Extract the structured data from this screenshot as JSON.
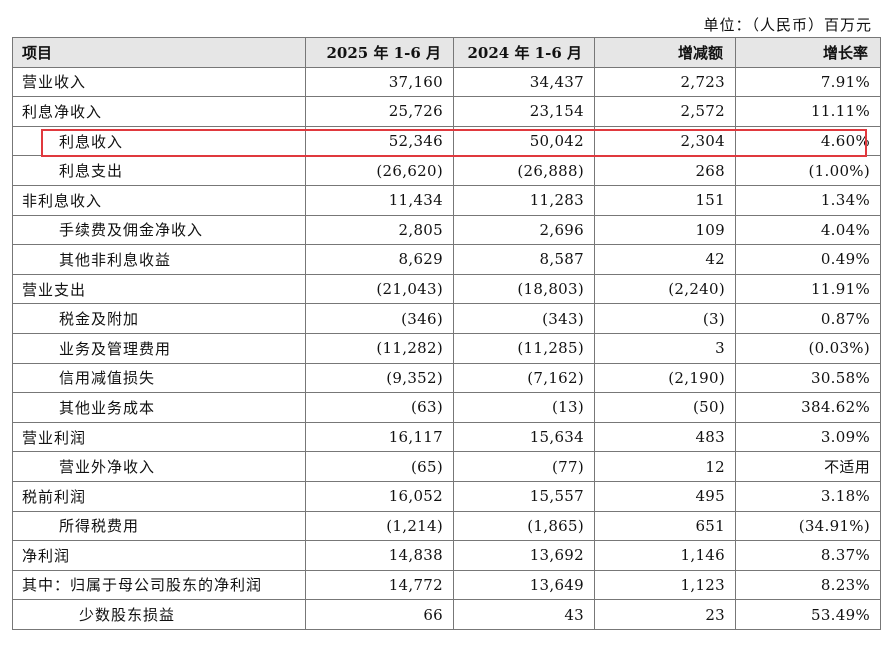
{
  "unit_label": "单位：（人民币）百万元",
  "headers": [
    "项目",
    "2025 年 1-6 月",
    "2024 年 1-6 月",
    "增减额",
    "增长率"
  ],
  "rows": [
    {
      "item": "营业收入",
      "level": 0,
      "y2025": "37,160",
      "y2024": "34,437",
      "change": "2,723",
      "rate": "7.91%"
    },
    {
      "item": "利息净收入",
      "level": 0,
      "y2025": "25,726",
      "y2024": "23,154",
      "change": "2,572",
      "rate": "11.11%"
    },
    {
      "item": "利息收入",
      "level": 1,
      "y2025": "52,346",
      "y2024": "50,042",
      "change": "2,304",
      "rate": "4.60%",
      "highlighted": true
    },
    {
      "item": "利息支出",
      "level": 1,
      "y2025": "(26,620)",
      "y2024": "(26,888)",
      "change": "268",
      "rate": "(1.00%)"
    },
    {
      "item": "非利息收入",
      "level": 0,
      "y2025": "11,434",
      "y2024": "11,283",
      "change": "151",
      "rate": "1.34%"
    },
    {
      "item": "手续费及佣金净收入",
      "level": 1,
      "y2025": "2,805",
      "y2024": "2,696",
      "change": "109",
      "rate": "4.04%"
    },
    {
      "item": "其他非利息收益",
      "level": 1,
      "y2025": "8,629",
      "y2024": "8,587",
      "change": "42",
      "rate": "0.49%"
    },
    {
      "item": "营业支出",
      "level": 0,
      "y2025": "(21,043)",
      "y2024": "(18,803)",
      "change": "(2,240)",
      "rate": "11.91%"
    },
    {
      "item": "税金及附加",
      "level": 1,
      "y2025": "(346)",
      "y2024": "(343)",
      "change": "(3)",
      "rate": "0.87%"
    },
    {
      "item": "业务及管理费用",
      "level": 1,
      "y2025": "(11,282)",
      "y2024": "(11,285)",
      "change": "3",
      "rate": "(0.03%)"
    },
    {
      "item": "信用减值损失",
      "level": 1,
      "y2025": "(9,352)",
      "y2024": "(7,162)",
      "change": "(2,190)",
      "rate": "30.58%"
    },
    {
      "item": "其他业务成本",
      "level": 1,
      "y2025": "(63)",
      "y2024": "(13)",
      "change": "(50)",
      "rate": "384.62%"
    },
    {
      "item": "营业利润",
      "level": 0,
      "y2025": "16,117",
      "y2024": "15,634",
      "change": "483",
      "rate": "3.09%"
    },
    {
      "item": "营业外净收入",
      "level": 1,
      "y2025": "(65)",
      "y2024": "(77)",
      "change": "12",
      "rate": "不适用"
    },
    {
      "item": "税前利润",
      "level": 0,
      "y2025": "16,052",
      "y2024": "15,557",
      "change": "495",
      "rate": "3.18%"
    },
    {
      "item": "所得税费用",
      "level": 1,
      "y2025": "(1,214)",
      "y2024": "(1,865)",
      "change": "651",
      "rate": "(34.91%)"
    },
    {
      "item": "净利润",
      "level": 0,
      "y2025": "14,838",
      "y2024": "13,692",
      "change": "1,146",
      "rate": "8.37%"
    },
    {
      "item": "其中：归属于母公司股东的净利润",
      "level": 0,
      "y2025": "14,772",
      "y2024": "13,649",
      "change": "1,123",
      "rate": "8.23%"
    },
    {
      "item": "少数股东损益",
      "level": 2,
      "y2025": "66",
      "y2024": "43",
      "change": "23",
      "rate": "53.49%"
    }
  ],
  "colors": {
    "highlight_border": "#e0393e",
    "header_bg": "#e6e6e6",
    "grid": "#777777"
  }
}
